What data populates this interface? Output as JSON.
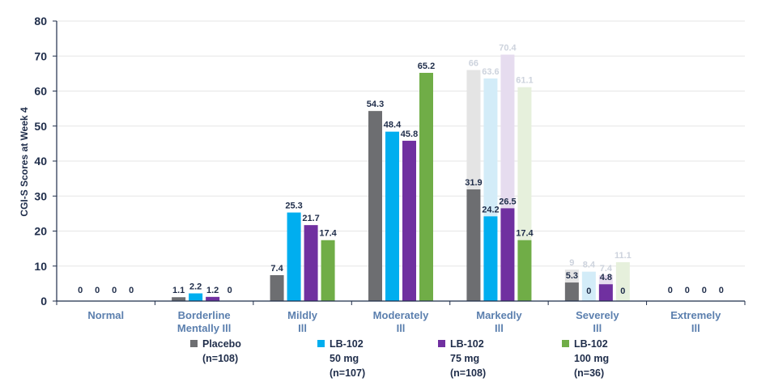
{
  "chart_data": {
    "type": "bar",
    "ylabel": "CGI-S Scores at Week 4",
    "ylim": [
      0,
      80
    ],
    "yticks": [
      "0",
      "10",
      "20",
      "30",
      "40",
      "50",
      "60",
      "70",
      "80"
    ],
    "categories": [
      [
        "Normal"
      ],
      [
        "Borderline",
        "Mentally Ill"
      ],
      [
        "Mildly",
        "Ill"
      ],
      [
        "Moderately",
        "Ill"
      ],
      [
        "Markedly",
        "Ill"
      ],
      [
        "Severely",
        "Ill"
      ],
      [
        "Extremely",
        "Ill"
      ]
    ],
    "series": [
      {
        "name": "Placebo",
        "n": "(n=108)",
        "color": "#6d6e71",
        "values": [
          0,
          1.1,
          7.4,
          54.3,
          31.9,
          5.3,
          0
        ],
        "labels": [
          "0",
          "1.1",
          "7.4",
          "54.3",
          "31.9",
          "5.3",
          "0"
        ]
      },
      {
        "name": "LB-102",
        "dose": "50 mg",
        "n": "(n=107)",
        "color": "#00aeef",
        "values": [
          0,
          2.2,
          25.3,
          48.4,
          24.2,
          0,
          0
        ],
        "labels": [
          "0",
          "2.2",
          "25.3",
          "48.4",
          "24.2",
          "0",
          "0"
        ]
      },
      {
        "name": "LB-102",
        "dose": "75 mg",
        "n": "(n=108)",
        "color": "#7030a0",
        "values": [
          0,
          1.2,
          21.7,
          45.8,
          26.5,
          4.8,
          0
        ],
        "labels": [
          "0",
          "1.2",
          "21.7",
          "45.8",
          "26.5",
          "4.8",
          "0"
        ]
      },
      {
        "name": "LB-102",
        "dose": "100 mg",
        "n": "(n=36)",
        "color": "#70ad47",
        "values": [
          0,
          0,
          17.4,
          65.2,
          17.4,
          0,
          0
        ],
        "labels": [
          "0",
          "0",
          "17.4",
          "65.2",
          "17.4",
          "0",
          "0"
        ]
      }
    ],
    "ghost_series": [
      {
        "name": "Placebo",
        "color": "#e4e4e4",
        "values": [
          null,
          null,
          null,
          null,
          66,
          9,
          null
        ],
        "labels": [
          "",
          "",
          "",
          "",
          "66",
          "9",
          ""
        ]
      },
      {
        "name": "LB-102 50 mg",
        "color": "#d3ecf8",
        "values": [
          null,
          null,
          null,
          null,
          63.6,
          8.4,
          null
        ],
        "labels": [
          "",
          "",
          "",
          "",
          "63.6",
          "8.4",
          ""
        ]
      },
      {
        "name": "LB-102 75 mg",
        "color": "#e6dcef",
        "values": [
          null,
          null,
          null,
          null,
          70.4,
          7.4,
          null
        ],
        "labels": [
          "",
          "",
          "",
          "",
          "70.4",
          "7.4",
          ""
        ]
      },
      {
        "name": "LB-102 100 mg",
        "color": "#e6f0dc",
        "values": [
          null,
          null,
          null,
          null,
          61.1,
          11.1,
          null
        ],
        "labels": [
          "",
          "",
          "",
          "",
          "61.1",
          "11.1",
          ""
        ]
      }
    ]
  },
  "legend": [
    {
      "line1": "Placebo",
      "line2": "(n=108)",
      "line3": "",
      "color": "#6d6e71"
    },
    {
      "line1": "LB-102",
      "line2": "50 mg",
      "line3": "(n=107)",
      "color": "#00aeef"
    },
    {
      "line1": "LB-102",
      "line2": "75 mg",
      "line3": "(n=108)",
      "color": "#7030a0"
    },
    {
      "line1": "LB-102",
      "line2": "100 mg",
      "line3": "(n=36)",
      "color": "#70ad47"
    }
  ]
}
